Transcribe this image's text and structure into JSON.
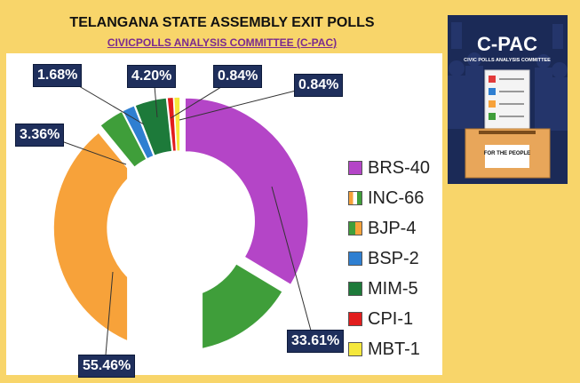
{
  "title": "TELANGANA STATE ASSEMBLY EXIT POLLS",
  "subtitle": "CIVICPOLLS ANALYSIS COMMITTEE (C-PAC)",
  "chart_data": {
    "type": "pie",
    "title": "TELANGANA STATE ASSEMBLY EXIT POLLS",
    "donut": true,
    "series": [
      {
        "name": "BRS-40",
        "value": 40,
        "label": "33.61%",
        "color": "#b445c7"
      },
      {
        "name": "INC-66",
        "value": 66,
        "label": "55.46%",
        "color": "#f7a23a"
      },
      {
        "name": "BJP-4",
        "value": 4,
        "label": "3.36%",
        "color": "#3f9e3a"
      },
      {
        "name": "BSP-2",
        "value": 2,
        "label": "1.68%",
        "color": "#2f7fd1"
      },
      {
        "name": "MIM-5",
        "value": 5,
        "label": "4.20%",
        "color": "#1d7a3a"
      },
      {
        "name": "CPI-1",
        "value": 1,
        "label": "0.84%",
        "color": "#e21d1d"
      },
      {
        "name": "MBT-1",
        "value": 1,
        "label": "0.84%",
        "color": "#f5e83c"
      }
    ],
    "legend_position": "right"
  },
  "poster": {
    "brand": "C-PAC",
    "tagline": "CIVIC POLLS ANALYSIS COMMITTEE",
    "box_text": "FOR THE PEOPLE"
  }
}
